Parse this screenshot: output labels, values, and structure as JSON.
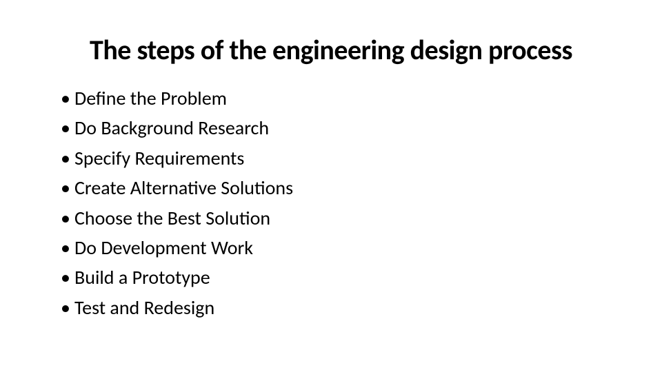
{
  "slide": {
    "title": "The steps of the engineering design process",
    "bullets": [
      "Define the Problem",
      "Do Background Research",
      "Specify Requirements",
      "Create Alternative Solutions",
      "Choose the Best Solution",
      "Do Development Work",
      "Build a Prototype",
      "Test and Redesign"
    ],
    "title_fontsize": 40,
    "title_fontweight": 700,
    "bullet_fontsize": 28,
    "bullet_fontweight": 400,
    "text_color": "#000000",
    "background_color": "#ffffff",
    "font_family": "Calibri"
  }
}
